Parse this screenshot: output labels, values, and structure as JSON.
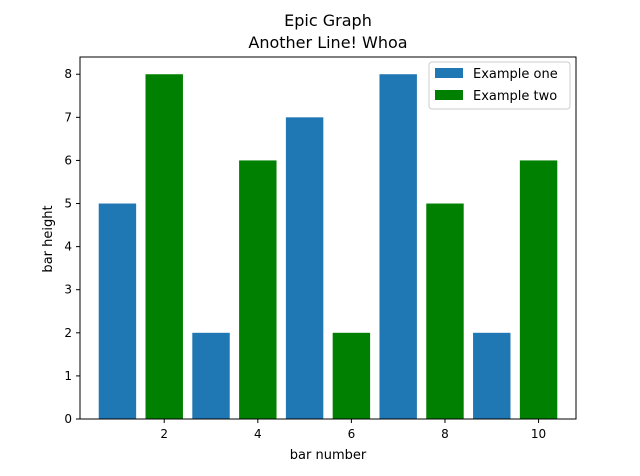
{
  "chart_data": {
    "type": "bar",
    "title": "Epic Graph",
    "subtitle": "Another Line! Whoa",
    "xlabel": "bar number",
    "ylabel": "bar height",
    "xlim": [
      0.2,
      10.8
    ],
    "ylim": [
      0,
      8.4
    ],
    "xticks": [
      2,
      4,
      6,
      8,
      10
    ],
    "yticks": [
      0,
      1,
      2,
      3,
      4,
      5,
      6,
      7,
      8
    ],
    "bar_width": 0.8,
    "legend_position": "top-right",
    "grid": false,
    "series": [
      {
        "name": "Example one",
        "color": "#1f77b4",
        "x": [
          1,
          3,
          5,
          7,
          9
        ],
        "values": [
          5,
          2,
          7,
          8,
          2
        ]
      },
      {
        "name": "Example two",
        "color": "#008000",
        "x": [
          2,
          4,
          6,
          8,
          10
        ],
        "values": [
          8,
          6,
          2,
          5,
          6
        ]
      }
    ]
  }
}
